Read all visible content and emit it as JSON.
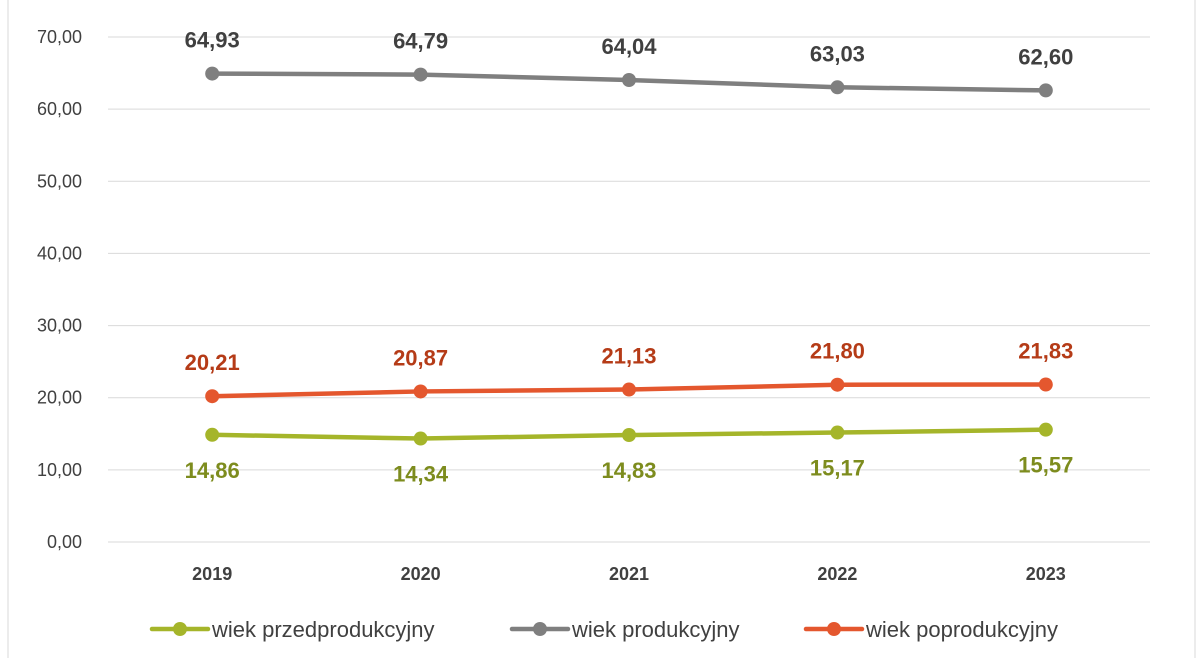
{
  "colors": {
    "wiek_przedprodukcyjny_line": "#a5b52a",
    "wiek_przedprodukcyjny_label": "#7d8c1e",
    "wiek_produkcyjny_line": "#7f7f7f",
    "wiek_produkcyjny_label": "#404040",
    "wiek_poprodukcyjny_line": "#e4572e",
    "wiek_poprodukcyjny_label": "#b53b17",
    "grid": "#d9d9d9",
    "axis_text": "#404040"
  },
  "chart_data": {
    "type": "line",
    "categories": [
      "2019",
      "2020",
      "2021",
      "2022",
      "2023"
    ],
    "ylim": [
      0,
      70
    ],
    "yticks": [
      "0,00",
      "10,00",
      "20,00",
      "30,00",
      "40,00",
      "50,00",
      "60,00",
      "70,00"
    ],
    "grid": true,
    "legend_position": "bottom",
    "series": [
      {
        "name": "wiek przedprodukcyjny",
        "values": [
          14.86,
          14.34,
          14.83,
          15.17,
          15.57
        ],
        "labels": [
          "14,86",
          "14,34",
          "14,83",
          "15,17",
          "15,57"
        ],
        "label_position": "below"
      },
      {
        "name": "wiek produkcyjny",
        "values": [
          64.93,
          64.79,
          64.04,
          63.03,
          62.6
        ],
        "labels": [
          "64,93",
          "64,79",
          "64,04",
          "63,03",
          "62,60"
        ],
        "label_position": "above"
      },
      {
        "name": "wiek poprodukcyjny",
        "values": [
          20.21,
          20.87,
          21.13,
          21.8,
          21.83
        ],
        "labels": [
          "20,21",
          "20,87",
          "21,13",
          "21,80",
          "21,83"
        ],
        "label_position": "above"
      }
    ]
  }
}
